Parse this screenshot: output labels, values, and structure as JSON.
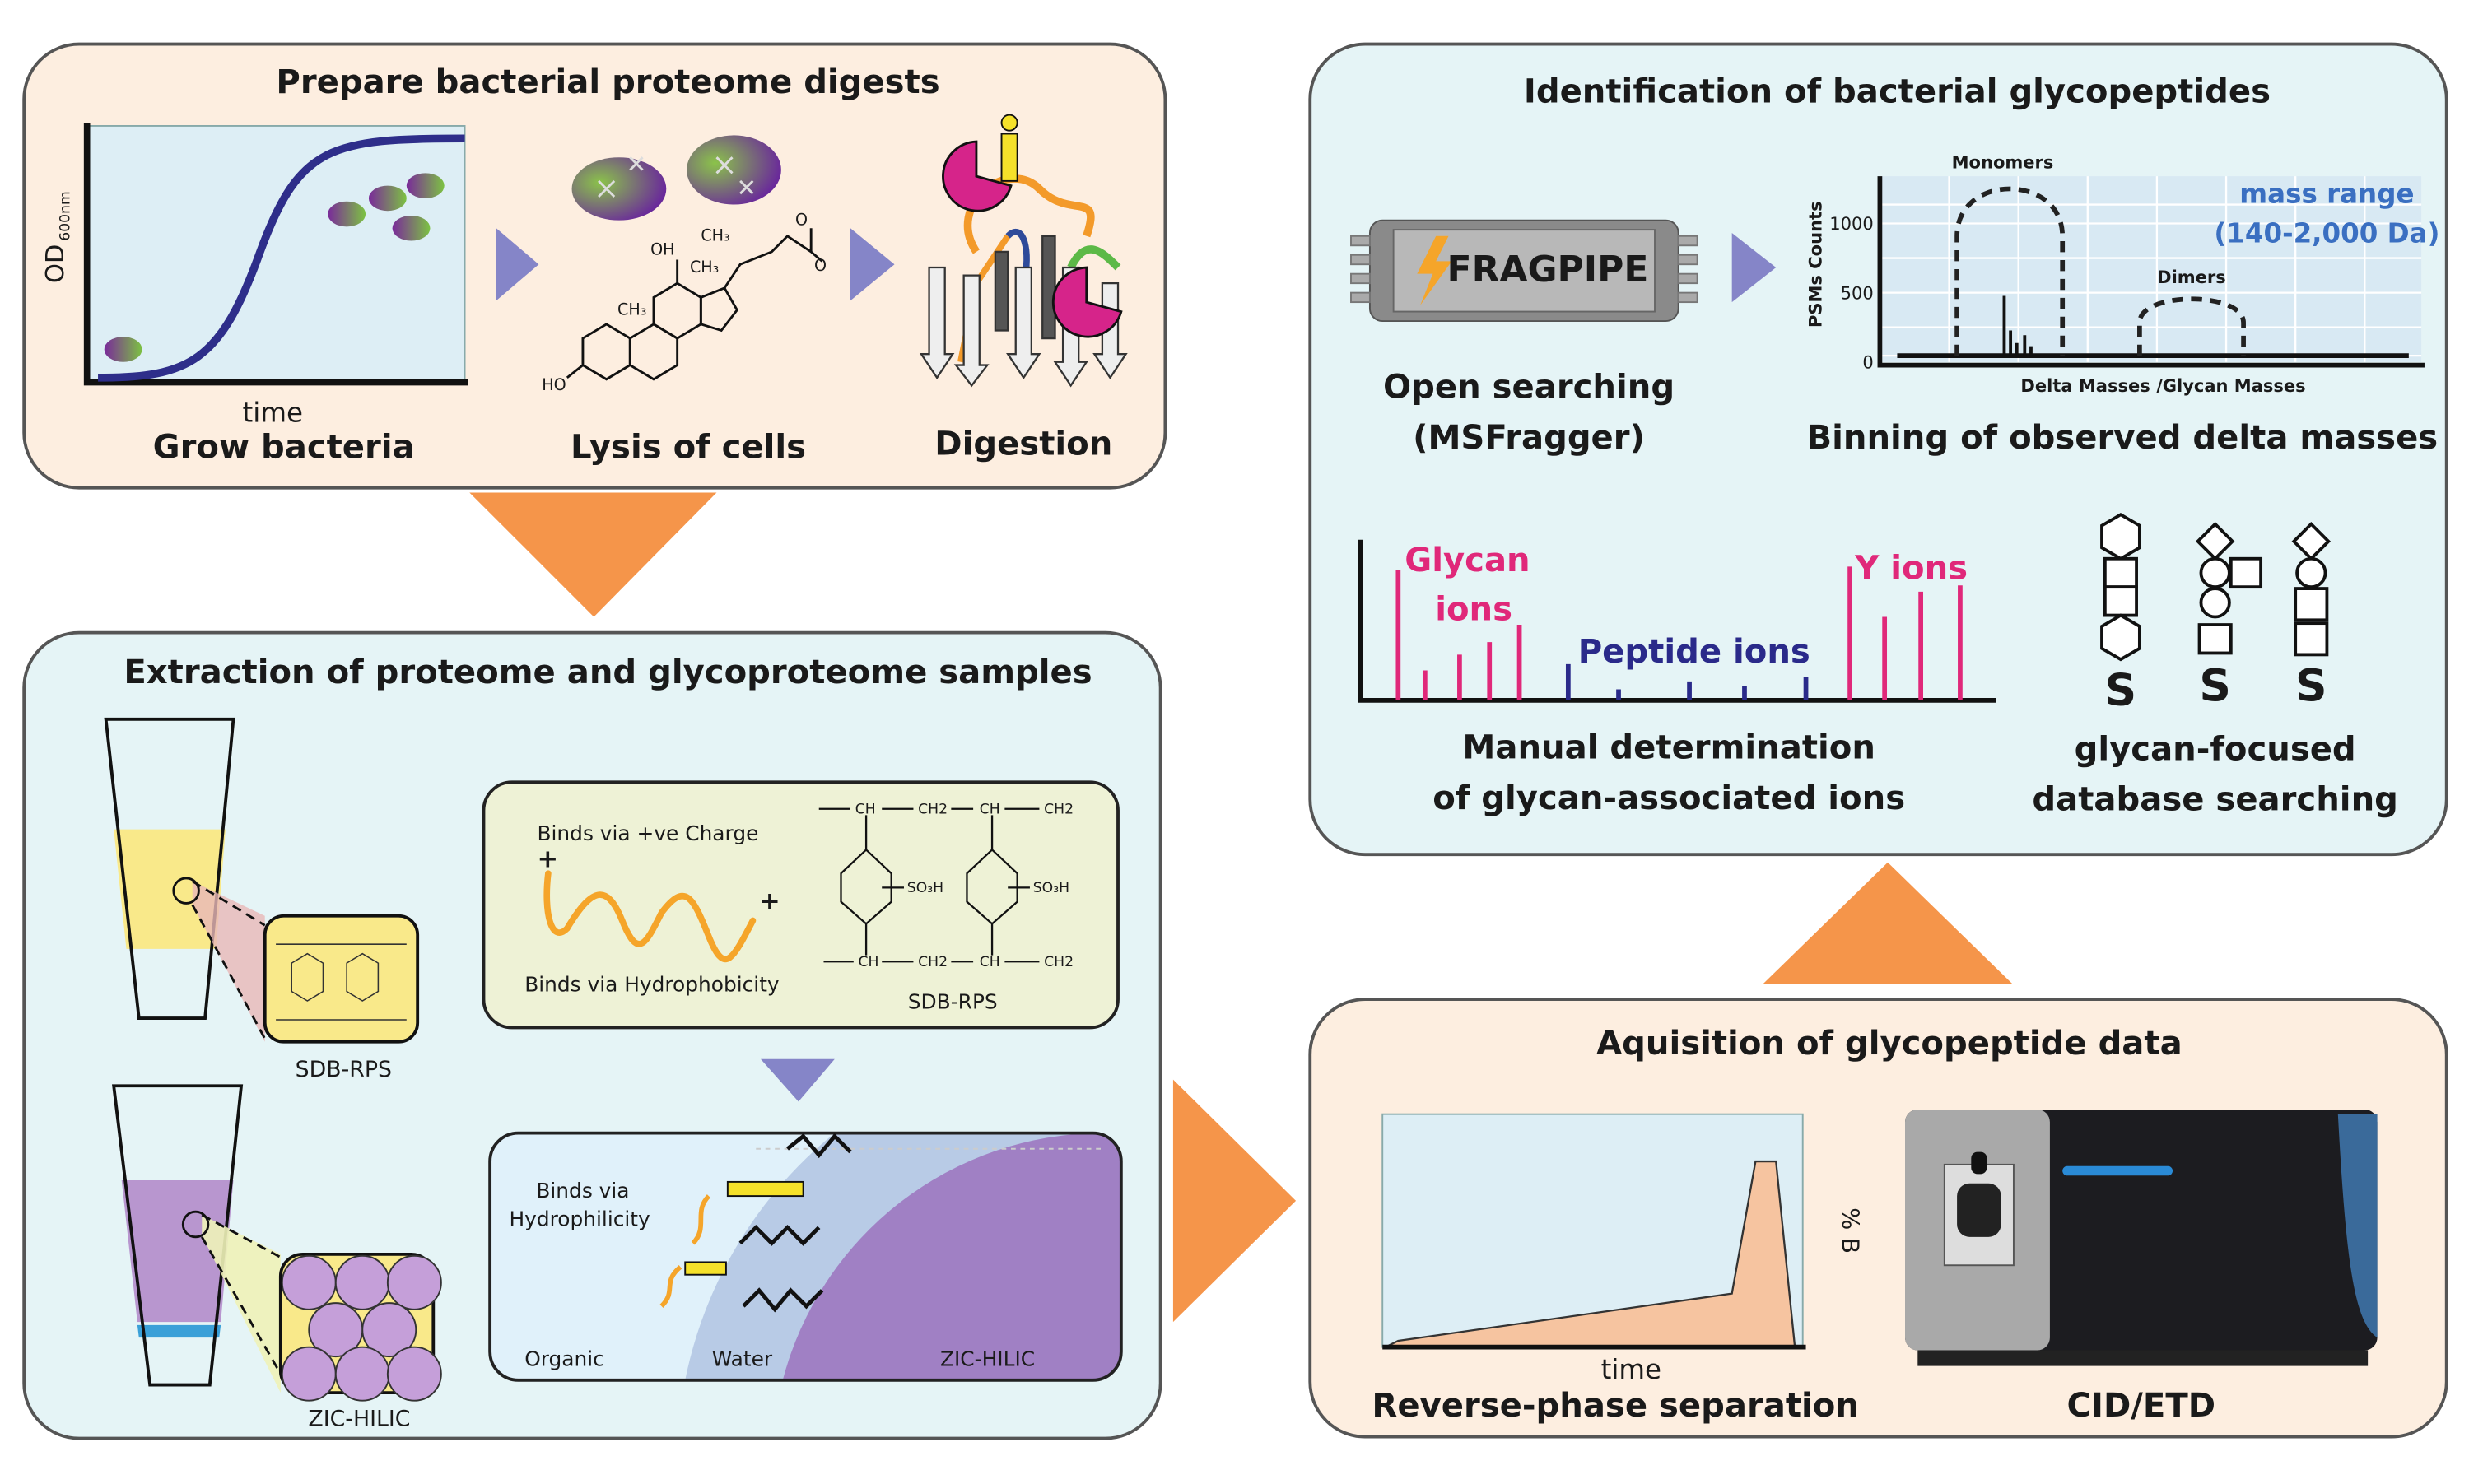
{
  "colors": {
    "peach_panel": "#fdeee0",
    "blue_panel": "#e5f4f6",
    "orange_arrow": "#f5954a",
    "purple_arrow": "#8585c8",
    "navy": "#2e2e8a",
    "pink": "#e0287a",
    "mass_range_blue": "#3a6fc1",
    "yellow": "#f9e98a",
    "purple_resin": "#b896cf"
  },
  "panel_prepare": {
    "title": "Prepare bacterial proteome digests",
    "growth": {
      "ylabel": "OD",
      "ylabel_sub": "600nm",
      "xlabel": "time",
      "caption": "Grow bacteria"
    },
    "lysis": {
      "caption": "Lysis of cells",
      "chem": [
        "OH",
        "CH₃",
        "CH₃",
        "CH₃",
        "HO",
        "O",
        "O"
      ]
    },
    "digestion": {
      "caption": "Digestion"
    }
  },
  "panel_extraction": {
    "title": "Extraction of proteome and glycoproteome samples",
    "tube1_label": "SDB-RPS",
    "tube2_label": "ZIC-HILIC",
    "sdb_box": {
      "charge_text": "Binds via +ve Charge",
      "hydrophobicity_text": "Binds via Hydrophobicity",
      "plus": "+",
      "chem_top": [
        "CH",
        "CH2",
        "CH",
        "CH2"
      ],
      "chem_bottom": [
        "CH",
        "CH2",
        "CH",
        "CH2"
      ],
      "substituent": "SO₃H",
      "resin_label": "SDB-RPS"
    },
    "zic_box": {
      "hydrophilicity_text_1": "Binds via",
      "hydrophilicity_text_2": "Hydrophilicity",
      "organic": "Organic",
      "water": "Water",
      "resin_label": "ZIC-HILIC"
    }
  },
  "panel_identification": {
    "title": "Identification of bacterial glycopeptides",
    "fragpipe": {
      "logo_text": "FRAGPIPE",
      "caption_1": "Open searching",
      "caption_2": "(MSFragger)"
    },
    "binning_chart": {
      "ylabel": "PSMs Counts",
      "xlabel": "Delta Masses /Glycan Masses",
      "yticks": [
        "1000",
        "500",
        "0"
      ],
      "monomers": "Monomers",
      "dimers": "Dimers",
      "mass_range_1": "mass range",
      "mass_range_2": "(140-2,000 Da)",
      "caption": "Binning of observed delta masses"
    },
    "spectrum": {
      "glycan_1": "Glycan",
      "glycan_2": "ions",
      "peptide": "Peptide ions",
      "y_ions": "Y ions",
      "caption_1": "Manual determination",
      "caption_2": "of glycan-associated ions"
    },
    "database": {
      "s_label": "S",
      "caption_1": "glycan-focused",
      "caption_2": "database searching"
    }
  },
  "panel_acquisition": {
    "title": "Aquisition of glycopeptide data",
    "gradient": {
      "ylabel": "% B",
      "xlabel": "time",
      "caption": "Reverse-phase separation"
    },
    "instrument": {
      "caption": "CID/ETD"
    }
  }
}
